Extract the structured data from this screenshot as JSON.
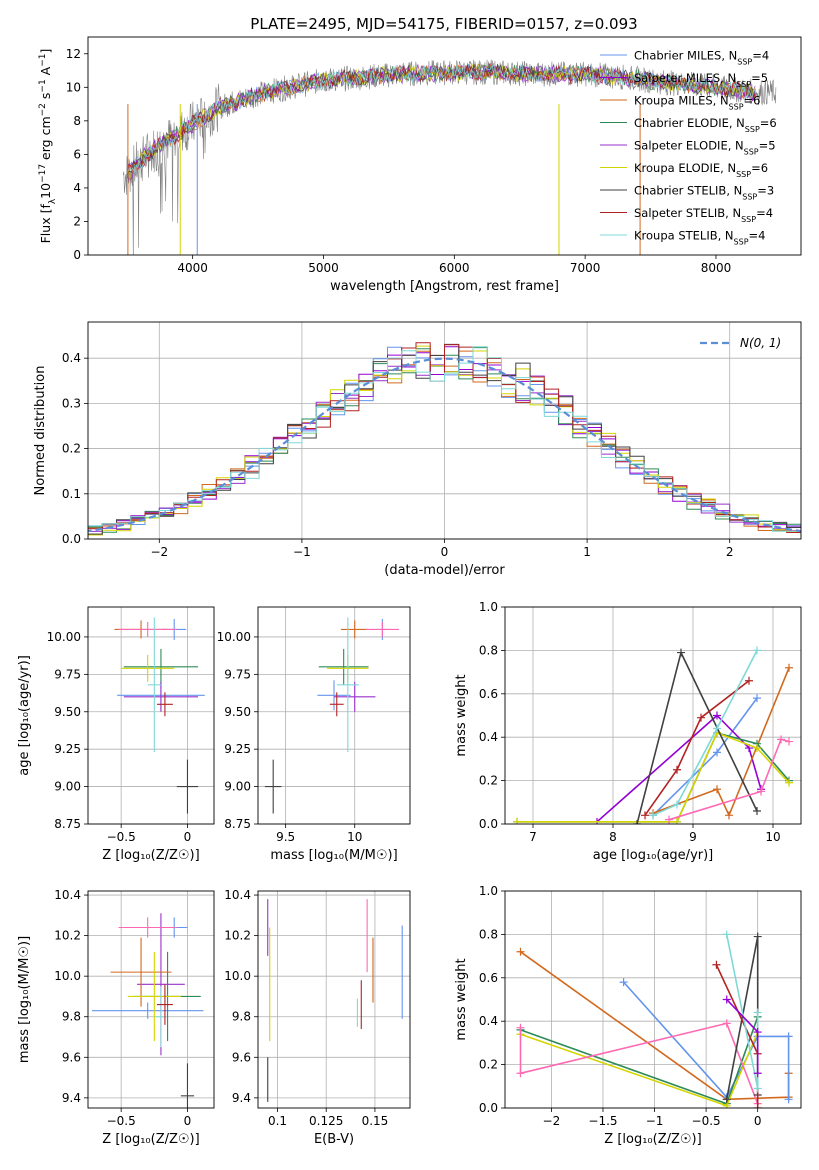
{
  "figure_title": "PLATE=2495, MJD=54175, FIBERID=0157, z=0.093",
  "series_colors": [
    "#6495ed",
    "#9400d3",
    "#d2691e",
    "#2e8b57",
    "#9932cc",
    "#d4d400",
    "#404040",
    "#b22222",
    "#7fd8d8",
    "#3cb371",
    "#ff69b4",
    "#9acd32"
  ],
  "chart_data": [
    {
      "type": "line",
      "title": "PLATE=2495, MJD=54175, FIBERID=0157, z=0.093",
      "xlabel": "wavelength [Angstrom, rest frame]",
      "ylabel": "Flux [f_λ 10^-17 erg cm^-2 s^-1 A^-1]",
      "xlim": [
        3200,
        8650
      ],
      "ylim": [
        0,
        13
      ],
      "xticks": [
        4000,
        5000,
        6000,
        7000,
        8000
      ],
      "yticks": [
        0,
        2,
        4,
        6,
        8,
        10,
        12
      ],
      "legend_position": "right",
      "series": [
        {
          "name": "Chabrier MILES, N_SSP=4",
          "color": "#6495ed"
        },
        {
          "name": "Salpeter MILES, N_SSP=5",
          "color": "#9400d3"
        },
        {
          "name": "Kroupa MILES, N_SSP=6",
          "color": "#d2691e"
        },
        {
          "name": "Chabrier ELODIE, N_SSP=6",
          "color": "#2e8b57"
        },
        {
          "name": "Salpeter ELODIE, N_SSP=5",
          "color": "#9932cc"
        },
        {
          "name": "Kroupa ELODIE, N_SSP=6",
          "color": "#d4d400"
        },
        {
          "name": "Chabrier STELIB, N_SSP=3",
          "color": "#404040"
        },
        {
          "name": "Salpeter STELIB, N_SSP=4",
          "color": "#b22222"
        },
        {
          "name": "Kroupa STELIB, N_SSP=4",
          "color": "#7fd8d8"
        }
      ],
      "continuum_x": [
        3500,
        3650,
        3800,
        4000,
        4200,
        4500,
        4800,
        5000,
        5300,
        5600,
        6000,
        6300,
        6600,
        7000,
        7300,
        7600,
        7900,
        8100,
        8300
      ],
      "continuum_y": [
        4.8,
        6.0,
        6.8,
        7.8,
        8.8,
        9.6,
        10.1,
        10.4,
        10.6,
        10.8,
        10.9,
        10.9,
        10.8,
        10.8,
        10.6,
        10.3,
        10.1,
        9.9,
        9.7
      ]
    },
    {
      "type": "histogram",
      "xlabel": "(data-model)/error",
      "ylabel": "Normed distribution",
      "xlim": [
        -2.5,
        2.5
      ],
      "ylim": [
        0,
        0.48
      ],
      "xticks": [
        -2,
        -1,
        0,
        1,
        2
      ],
      "yticks": [
        0.0,
        0.1,
        0.2,
        0.3,
        0.4
      ],
      "bin_width": 0.1,
      "legend": "N(0,1)",
      "legend_position": "top-right",
      "reference_curve": "normal(0,1)"
    },
    {
      "type": "scatter",
      "xlabel": "Z [log10(Z/Z_sun)]",
      "ylabel": "age [log10(age/yr)]",
      "xlim": [
        -0.75,
        0.2
      ],
      "ylim": [
        8.75,
        10.2
      ],
      "xticks": [
        -0.5,
        0.0
      ],
      "yticks": [
        8.75,
        9.0,
        9.25,
        9.5,
        9.75,
        10.0
      ],
      "points": [
        {
          "x": -0.2,
          "y": 9.61,
          "xerr": 0.33,
          "yerr": 0.1,
          "c": "#6495ed"
        },
        {
          "x": -0.1,
          "y": 10.05,
          "xerr": 0.09,
          "yerr": 0.07,
          "c": "#6495ed"
        },
        {
          "x": -0.2,
          "y": 9.8,
          "xerr": 0.28,
          "yerr": 0.12,
          "c": "#2e8b57"
        },
        {
          "x": -0.2,
          "y": 9.6,
          "xerr": 0.28,
          "yerr": 0.1,
          "c": "#9932cc"
        },
        {
          "x": -0.35,
          "y": 10.05,
          "xerr": 0.2,
          "yerr": 0.06,
          "c": "#d2691e"
        },
        {
          "x": -0.3,
          "y": 10.05,
          "xerr": 0.22,
          "yerr": 0.05,
          "c": "#ff69b4"
        },
        {
          "x": -0.3,
          "y": 9.79,
          "xerr": 0.2,
          "yerr": 0.09,
          "c": "#d4d400"
        },
        {
          "x": -0.25,
          "y": 9.68,
          "xerr": 0.05,
          "yerr": 0.45,
          "c": "#7fd8d8"
        },
        {
          "x": -0.17,
          "y": 9.55,
          "xerr": 0.06,
          "yerr": 0.08,
          "c": "#b22222"
        },
        {
          "x": 0.0,
          "y": 9.0,
          "xerr": 0.08,
          "yerr": 0.18,
          "c": "#404040"
        }
      ]
    },
    {
      "type": "scatter",
      "xlabel": "mass [log10(M/M_sun)]",
      "xlim": [
        9.3,
        10.4
      ],
      "ylim": [
        8.75,
        10.2
      ],
      "xticks": [
        9.5,
        10.0
      ],
      "yticks": [
        8.75,
        9.0,
        9.25,
        9.5,
        9.75,
        10.0
      ],
      "points": [
        {
          "x": 9.85,
          "y": 9.61,
          "xerr": 0.12,
          "yerr": 0.1,
          "c": "#6495ed"
        },
        {
          "x": 10.2,
          "y": 10.05,
          "xerr": 0.05,
          "yerr": 0.07,
          "c": "#6495ed"
        },
        {
          "x": 9.92,
          "y": 9.8,
          "xerr": 0.18,
          "yerr": 0.12,
          "c": "#2e8b57"
        },
        {
          "x": 10.0,
          "y": 9.6,
          "xerr": 0.15,
          "yerr": 0.1,
          "c": "#9932cc"
        },
        {
          "x": 10.0,
          "y": 10.05,
          "xerr": 0.1,
          "yerr": 0.06,
          "c": "#d2691e"
        },
        {
          "x": 10.2,
          "y": 10.05,
          "xerr": 0.12,
          "yerr": 0.05,
          "c": "#ff69b4"
        },
        {
          "x": 9.95,
          "y": 9.79,
          "xerr": 0.15,
          "yerr": 0.09,
          "c": "#d4d400"
        },
        {
          "x": 9.95,
          "y": 9.68,
          "xerr": 0.08,
          "yerr": 0.45,
          "c": "#7fd8d8"
        },
        {
          "x": 9.87,
          "y": 9.55,
          "xerr": 0.05,
          "yerr": 0.08,
          "c": "#b22222"
        },
        {
          "x": 9.41,
          "y": 9.0,
          "xerr": 0.06,
          "yerr": 0.18,
          "c": "#404040"
        }
      ]
    },
    {
      "type": "line",
      "xlabel": "age [log10(age/yr)]",
      "ylabel": "mass weight",
      "xlim": [
        6.65,
        10.35
      ],
      "ylim": [
        0,
        1
      ],
      "xticks": [
        7,
        8,
        9,
        10
      ],
      "yticks": [
        0.0,
        0.2,
        0.4,
        0.6,
        0.8,
        1.0
      ],
      "series": [
        {
          "c": "#6495ed",
          "x": [
            8.5,
            9.3,
            9.8
          ],
          "y": [
            0.04,
            0.33,
            0.58
          ]
        },
        {
          "c": "#9400d3",
          "x": [
            7.8,
            9.3,
            9.7,
            9.85
          ],
          "y": [
            0.01,
            0.5,
            0.35,
            0.16
          ]
        },
        {
          "c": "#d2691e",
          "x": [
            8.5,
            9.3,
            9.45,
            10.2
          ],
          "y": [
            0.05,
            0.16,
            0.04,
            0.72
          ]
        },
        {
          "c": "#2e8b57",
          "x": [
            6.8,
            8.8,
            9.3,
            9.8,
            10.2
          ],
          "y": [
            0.01,
            0.01,
            0.42,
            0.37,
            0.2
          ]
        },
        {
          "c": "#d4d400",
          "x": [
            6.8,
            8.8,
            9.3,
            9.8,
            10.2
          ],
          "y": [
            0.01,
            0.01,
            0.42,
            0.35,
            0.19
          ]
        },
        {
          "c": "#404040",
          "x": [
            8.3,
            8.85,
            9.8
          ],
          "y": [
            0.0,
            0.79,
            0.06
          ]
        },
        {
          "c": "#b22222",
          "x": [
            8.4,
            8.8,
            9.1,
            9.7
          ],
          "y": [
            0.04,
            0.25,
            0.49,
            0.66
          ]
        },
        {
          "c": "#7fd8d8",
          "x": [
            8.5,
            8.8,
            9.3,
            9.8
          ],
          "y": [
            0.04,
            0.09,
            0.44,
            0.8
          ]
        },
        {
          "c": "#ff69b4",
          "x": [
            8.7,
            9.85,
            10.1,
            10.2
          ],
          "y": [
            0.02,
            0.15,
            0.39,
            0.38
          ]
        }
      ]
    },
    {
      "type": "scatter",
      "xlabel": "Z [log10(Z/Z_sun)]",
      "ylabel": "mass [log10(M/M_sun)]",
      "xlim": [
        -0.75,
        0.2
      ],
      "ylim": [
        9.35,
        10.42
      ],
      "xticks": [
        -0.5,
        0.0
      ],
      "yticks": [
        9.4,
        9.6,
        9.8,
        10.0,
        10.2,
        10.4
      ],
      "points": [
        {
          "x": -0.3,
          "y": 9.83,
          "xerr": 0.42,
          "yerr": 0.04,
          "c": "#6495ed"
        },
        {
          "x": -0.1,
          "y": 10.24,
          "xerr": 0.1,
          "yerr": 0.05,
          "c": "#6495ed"
        },
        {
          "x": -0.15,
          "y": 9.9,
          "xerr": 0.25,
          "yerr": 0.22,
          "c": "#2e8b57"
        },
        {
          "x": -0.2,
          "y": 9.96,
          "xerr": 0.18,
          "yerr": 0.35,
          "c": "#9932cc"
        },
        {
          "x": -0.35,
          "y": 10.02,
          "xerr": 0.23,
          "yerr": 0.17,
          "c": "#d2691e"
        },
        {
          "x": -0.3,
          "y": 10.24,
          "xerr": 0.22,
          "yerr": 0.05,
          "c": "#ff69b4"
        },
        {
          "x": -0.25,
          "y": 9.9,
          "xerr": 0.2,
          "yerr": 0.22,
          "c": "#d4d400"
        },
        {
          "x": -0.2,
          "y": 9.8,
          "xerr": 0.04,
          "yerr": 0.15,
          "c": "#7fd8d8"
        },
        {
          "x": -0.17,
          "y": 9.86,
          "xerr": 0.06,
          "yerr": 0.1,
          "c": "#b22222"
        },
        {
          "x": 0.0,
          "y": 9.41,
          "xerr": 0.05,
          "yerr": 0.16,
          "c": "#404040"
        }
      ]
    },
    {
      "type": "scatter",
      "xlabel": "E(B-V)",
      "xlim": [
        0.09,
        0.168
      ],
      "ylim": [
        9.35,
        10.42
      ],
      "xticks": [
        0.1,
        0.125,
        0.15
      ],
      "yticks": [
        9.4,
        9.6,
        9.8,
        10.0,
        10.2,
        10.4
      ],
      "points": [
        {
          "x": 0.095,
          "y": 9.49,
          "yerr": 0.11,
          "c": "#404040"
        },
        {
          "x": 0.095,
          "y": 10.24,
          "yerr": 0.14,
          "c": "#9932cc"
        },
        {
          "x": 0.096,
          "y": 9.96,
          "yerr": 0.28,
          "c": "#d4d400"
        },
        {
          "x": 0.141,
          "y": 9.82,
          "yerr": 0.07,
          "c": "#7fd8d8"
        },
        {
          "x": 0.143,
          "y": 9.86,
          "yerr": 0.12,
          "c": "#b22222"
        },
        {
          "x": 0.146,
          "y": 10.2,
          "yerr": 0.18,
          "c": "#ff69b4"
        },
        {
          "x": 0.149,
          "y": 10.03,
          "yerr": 0.16,
          "c": "#d2691e"
        },
        {
          "x": 0.164,
          "y": 10.02,
          "yerr": 0.23,
          "c": "#6495ed"
        }
      ]
    },
    {
      "type": "line",
      "xlabel": "Z [log10(Z/Z_sun)]",
      "ylabel": "mass weight",
      "xlim": [
        -2.45,
        0.42
      ],
      "ylim": [
        0,
        1
      ],
      "xticks": [
        -2.0,
        -1.5,
        -1.0,
        -0.5,
        0.0
      ],
      "yticks": [
        0.0,
        0.2,
        0.4,
        0.6,
        0.8,
        1.0
      ],
      "series": [
        {
          "c": "#d2691e",
          "x": [
            -2.3,
            -0.3,
            0.3,
            0.3
          ],
          "y": [
            0.72,
            0.04,
            0.05,
            0.16
          ]
        },
        {
          "c": "#6495ed",
          "x": [
            -1.3,
            -0.3,
            0.0,
            0.3,
            0.3
          ],
          "y": [
            0.58,
            0.05,
            0.33,
            0.33,
            0.04
          ]
        },
        {
          "c": "#2e8b57",
          "x": [
            -2.3,
            -0.3,
            0.0
          ],
          "y": [
            0.36,
            0.02,
            0.42
          ]
        },
        {
          "c": "#d4d400",
          "x": [
            -2.3,
            -0.3,
            0.0
          ],
          "y": [
            0.34,
            0.01,
            0.35
          ]
        },
        {
          "c": "#ff69b4",
          "x": [
            -2.3,
            -2.3,
            -0.3,
            0.0
          ],
          "y": [
            0.37,
            0.16,
            0.39,
            0.02
          ]
        },
        {
          "c": "#404040",
          "x": [
            -0.3,
            0.0,
            0.0
          ],
          "y": [
            0.04,
            0.79,
            0.06
          ]
        },
        {
          "c": "#b22222",
          "x": [
            -0.4,
            0.0,
            0.0
          ],
          "y": [
            0.66,
            0.25,
            0.0
          ]
        },
        {
          "c": "#7fd8d8",
          "x": [
            -0.3,
            0.0,
            0.0
          ],
          "y": [
            0.8,
            0.09,
            0.44
          ]
        },
        {
          "c": "#9400d3",
          "x": [
            -0.3,
            0.0,
            0.0
          ],
          "y": [
            0.5,
            0.35,
            0.16
          ]
        }
      ]
    }
  ]
}
